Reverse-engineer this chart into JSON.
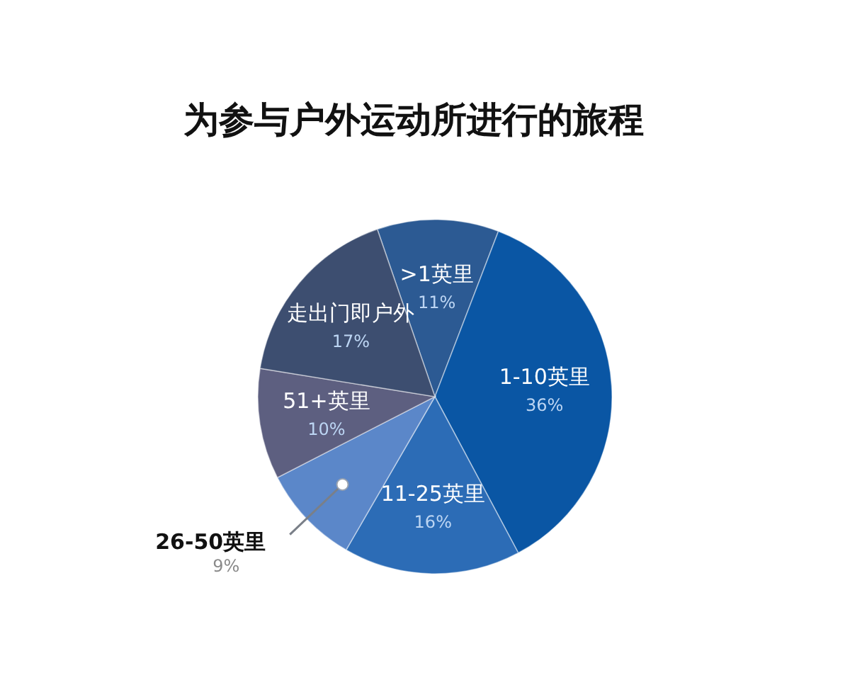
{
  "chart_data": {
    "type": "pie",
    "title": "为参与户外运动所进行的旅程",
    "categories": [
      ">1英里",
      "1-10英里",
      "11-25英里",
      "26-50英里",
      "51+英里",
      "走出门即户外"
    ],
    "values": [
      11,
      36,
      16,
      9,
      10,
      17
    ],
    "value_labels": [
      "11%",
      "36%",
      "16%",
      "9%",
      "10%",
      "17%"
    ],
    "colors": [
      "#2c5a93",
      "#0a56a4",
      "#2c6cb6",
      "#5b87c9",
      "#5d5f80",
      "#3d4e70"
    ]
  }
}
